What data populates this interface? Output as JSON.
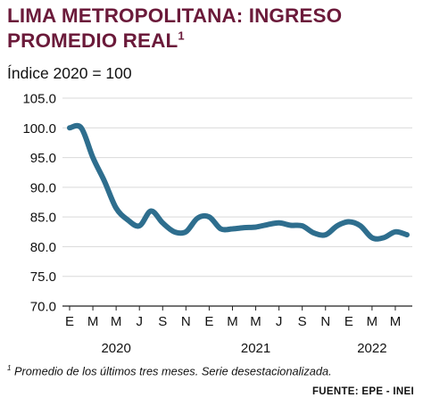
{
  "header": {
    "title_line1": "LIMA METROPOLITANA: INGRESO",
    "title_line2": "PROMEDIO REAL",
    "title_sup": "1",
    "subtitle": "Índice 2020 = 100"
  },
  "footnote": {
    "marker": "1",
    "text": " Promedio de los últimos tres meses. Serie desestacionalizada."
  },
  "source": "FUENTE: EPE - INEI",
  "colors": {
    "line": "#2e6e8e",
    "title": "#6b1a3a",
    "grid": "#d9d9d9"
  },
  "chart_data": {
    "type": "line",
    "ylim": [
      70,
      105
    ],
    "yticks": [
      "105.0",
      "100.0",
      "95.0",
      "90.0",
      "85.0",
      "80.0",
      "75.0",
      "70.0"
    ],
    "grid": "horizontal",
    "month_labels": [
      "E",
      "M",
      "M",
      "J",
      "S",
      "N",
      "E",
      "M",
      "M",
      "J",
      "S",
      "N",
      "E",
      "M",
      "M"
    ],
    "year_labels": [
      {
        "label": "2020",
        "month_index": 4
      },
      {
        "label": "2021",
        "month_index": 16
      },
      {
        "label": "2022",
        "month_index": 26
      }
    ],
    "series": [
      {
        "values": [
          100.0,
          100.0,
          95.0,
          91.0,
          86.5,
          84.5,
          83.5,
          86.0,
          84.0,
          82.5,
          82.5,
          84.8,
          85.0,
          83.0,
          83.0,
          83.2,
          83.3,
          83.7,
          84.0,
          83.6,
          83.5,
          82.3,
          82.0,
          83.5,
          84.2,
          83.5,
          81.5,
          81.5,
          82.5,
          82.0
        ]
      }
    ]
  }
}
